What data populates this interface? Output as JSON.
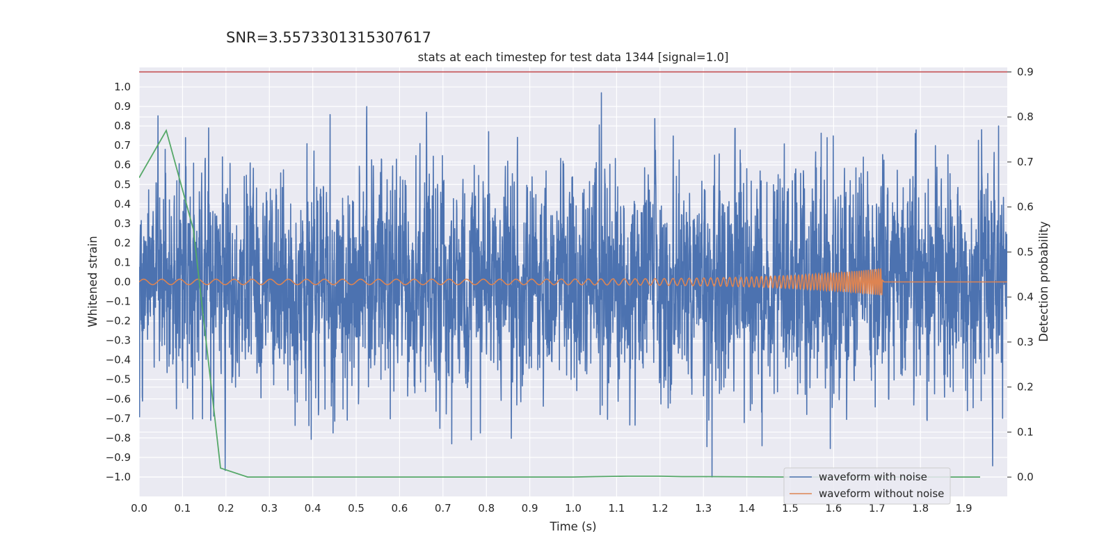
{
  "snr_text": "SNR=3.5573301315307617",
  "chart_data": {
    "type": "line",
    "title": "stats at each timestep for test data 1344 [signal=1.0]",
    "xlabel": "Time (s)",
    "ylabel_left": "Whitened strain",
    "ylabel_right": "Detection probability",
    "xlim": [
      0.0,
      2.0
    ],
    "ylim_left": [
      -1.1,
      1.1
    ],
    "ylim_right": [
      -0.043,
      0.91
    ],
    "x_ticks": [
      "0.0",
      "0.1",
      "0.2",
      "0.3",
      "0.4",
      "0.5",
      "0.6",
      "0.7",
      "0.8",
      "0.9",
      "1.0",
      "1.1",
      "1.2",
      "1.3",
      "1.4",
      "1.5",
      "1.6",
      "1.7",
      "1.8",
      "1.9"
    ],
    "y_ticks_left": [
      "1.0",
      "0.9",
      "0.8",
      "0.7",
      "0.6",
      "0.5",
      "0.4",
      "0.3",
      "0.2",
      "0.1",
      "0.0",
      "−0.1",
      "−0.2",
      "−0.3",
      "−0.4",
      "−0.5",
      "−0.6",
      "−0.7",
      "−0.8",
      "−0.9",
      "−1.0"
    ],
    "y_ticks_right": [
      "0.9",
      "0.8",
      "0.7",
      "0.6",
      "0.5",
      "0.4",
      "0.3",
      "0.2",
      "0.1",
      "0.0"
    ],
    "grid": true,
    "legend_position": "lower-right",
    "colors": {
      "noisy": "#4c72b0",
      "clean": "#dd8452",
      "probability": "#55a868",
      "threshold": "#c44e52",
      "axes_bg": "#eaeaf2",
      "grid": "#ffffff"
    },
    "series": [
      {
        "name": "waveform with noise",
        "kind": "noise",
        "fs": 2048,
        "sigma": 0.26,
        "seed": 1344,
        "spikes": [
          {
            "x": 0.02,
            "y": 0.35
          },
          {
            "x": 0.06,
            "y": 0.68
          },
          {
            "x": 0.107,
            "y": 0.74
          },
          {
            "x": 0.16,
            "y": 0.79
          },
          {
            "x": 0.165,
            "y": -0.71
          },
          {
            "x": 0.72,
            "y": -0.83
          },
          {
            "x": 0.765,
            "y": -0.81
          },
          {
            "x": 1.065,
            "y": 0.97
          },
          {
            "x": 1.062,
            "y": -0.68
          },
          {
            "x": 1.32,
            "y": -1.0
          },
          {
            "x": 1.435,
            "y": -0.84
          },
          {
            "x": 1.79,
            "y": 0.78
          },
          {
            "x": 1.98,
            "y": 0.8
          },
          {
            "x": 1.585,
            "y": 0.74
          }
        ]
      },
      {
        "name": "waveform without noise",
        "kind": "chirp",
        "fs": 2048,
        "t_merger": 1.712,
        "f_start": 24,
        "f_end": 220,
        "amp_start": 0.014,
        "amp_end": 0.07
      },
      {
        "name": "",
        "axis": "right",
        "x": [
          0.0,
          0.0625,
          0.125,
          0.1875,
          0.25,
          0.5,
          0.75,
          1.0,
          1.05,
          1.125,
          1.2,
          1.25,
          1.3,
          1.5,
          1.75,
          1.9375
        ],
        "y": [
          0.665,
          0.77,
          0.55,
          0.02,
          0.0,
          0.0,
          0.0,
          0.0,
          0.001,
          0.002,
          0.002,
          0.001,
          0.001,
          0.0,
          0.0,
          0.0
        ]
      },
      {
        "name": "",
        "axis": "right",
        "kind": "threshold",
        "y": 0.9
      }
    ]
  }
}
